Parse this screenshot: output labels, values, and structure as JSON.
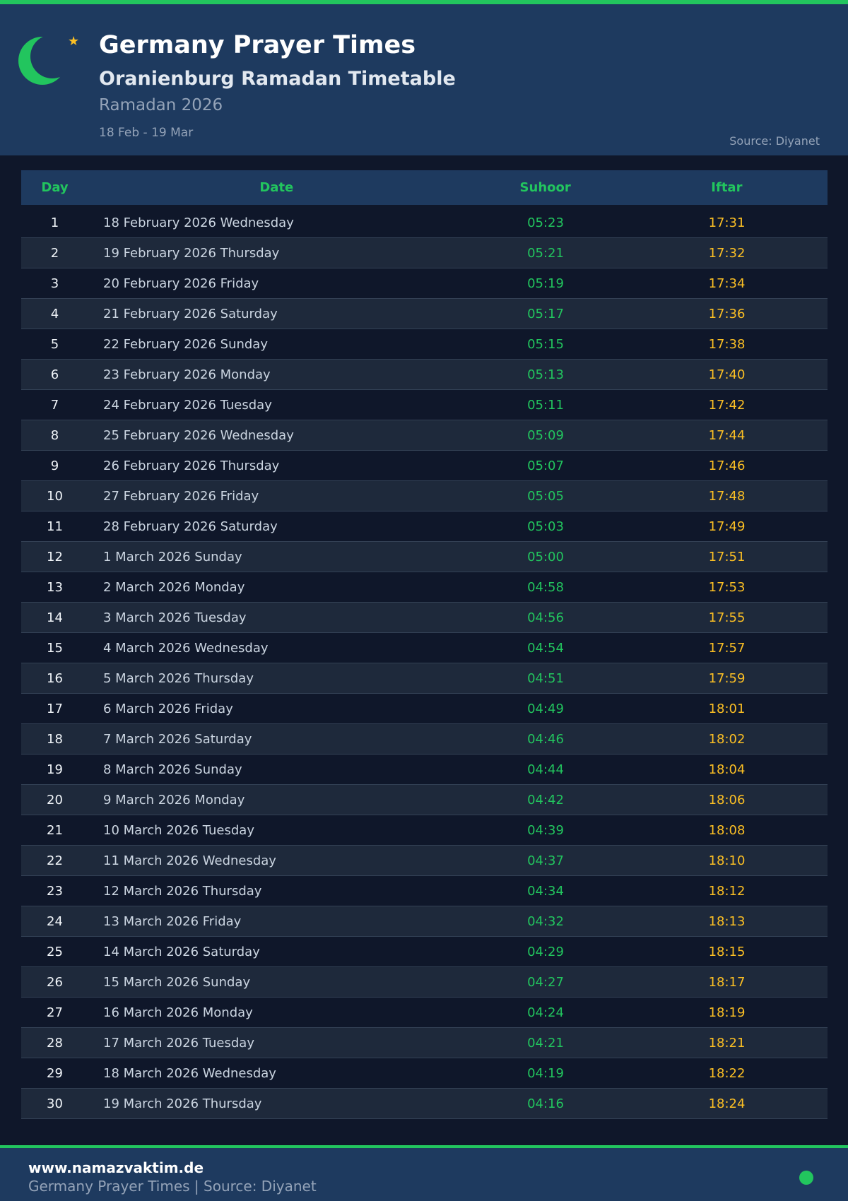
{
  "header": {
    "title": "Germany Prayer Times",
    "subtitle": "Oranienburg Ramadan Timetable",
    "season": "Ramadan 2026",
    "range": "18 Feb - 19 Mar",
    "source": "Source: Diyanet",
    "icons": [
      "crescent-moon-icon",
      "star-icon"
    ]
  },
  "colors": {
    "accent": "#22c55e",
    "iftar": "#fbbf24",
    "header_bg": "#1e3a5f",
    "page_bg": "#0f172a"
  },
  "table": {
    "columns": [
      "Day",
      "Date",
      "Suhoor",
      "Iftar"
    ],
    "rows": [
      [
        "1",
        "18 February 2026 Wednesday",
        "05:23",
        "17:31"
      ],
      [
        "2",
        "19 February 2026 Thursday",
        "05:21",
        "17:32"
      ],
      [
        "3",
        "20 February 2026 Friday",
        "05:19",
        "17:34"
      ],
      [
        "4",
        "21 February 2026 Saturday",
        "05:17",
        "17:36"
      ],
      [
        "5",
        "22 February 2026 Sunday",
        "05:15",
        "17:38"
      ],
      [
        "6",
        "23 February 2026 Monday",
        "05:13",
        "17:40"
      ],
      [
        "7",
        "24 February 2026 Tuesday",
        "05:11",
        "17:42"
      ],
      [
        "8",
        "25 February 2026 Wednesday",
        "05:09",
        "17:44"
      ],
      [
        "9",
        "26 February 2026 Thursday",
        "05:07",
        "17:46"
      ],
      [
        "10",
        "27 February 2026 Friday",
        "05:05",
        "17:48"
      ],
      [
        "11",
        "28 February 2026 Saturday",
        "05:03",
        "17:49"
      ],
      [
        "12",
        "1 March 2026 Sunday",
        "05:00",
        "17:51"
      ],
      [
        "13",
        "2 March 2026 Monday",
        "04:58",
        "17:53"
      ],
      [
        "14",
        "3 March 2026 Tuesday",
        "04:56",
        "17:55"
      ],
      [
        "15",
        "4 March 2026 Wednesday",
        "04:54",
        "17:57"
      ],
      [
        "16",
        "5 March 2026 Thursday",
        "04:51",
        "17:59"
      ],
      [
        "17",
        "6 March 2026 Friday",
        "04:49",
        "18:01"
      ],
      [
        "18",
        "7 March 2026 Saturday",
        "04:46",
        "18:02"
      ],
      [
        "19",
        "8 March 2026 Sunday",
        "04:44",
        "18:04"
      ],
      [
        "20",
        "9 March 2026 Monday",
        "04:42",
        "18:06"
      ],
      [
        "21",
        "10 March 2026 Tuesday",
        "04:39",
        "18:08"
      ],
      [
        "22",
        "11 March 2026 Wednesday",
        "04:37",
        "18:10"
      ],
      [
        "23",
        "12 March 2026 Thursday",
        "04:34",
        "18:12"
      ],
      [
        "24",
        "13 March 2026 Friday",
        "04:32",
        "18:13"
      ],
      [
        "25",
        "14 March 2026 Saturday",
        "04:29",
        "18:15"
      ],
      [
        "26",
        "15 March 2026 Sunday",
        "04:27",
        "18:17"
      ],
      [
        "27",
        "16 March 2026 Monday",
        "04:24",
        "18:19"
      ],
      [
        "28",
        "17 March 2026 Tuesday",
        "04:21",
        "18:21"
      ],
      [
        "29",
        "18 March 2026 Wednesday",
        "04:19",
        "18:22"
      ],
      [
        "30",
        "19 March 2026 Thursday",
        "04:16",
        "18:24"
      ]
    ]
  },
  "footer": {
    "site": "www.namazvaktim.de",
    "text": "Germany Prayer Times | Source: Diyanet"
  }
}
